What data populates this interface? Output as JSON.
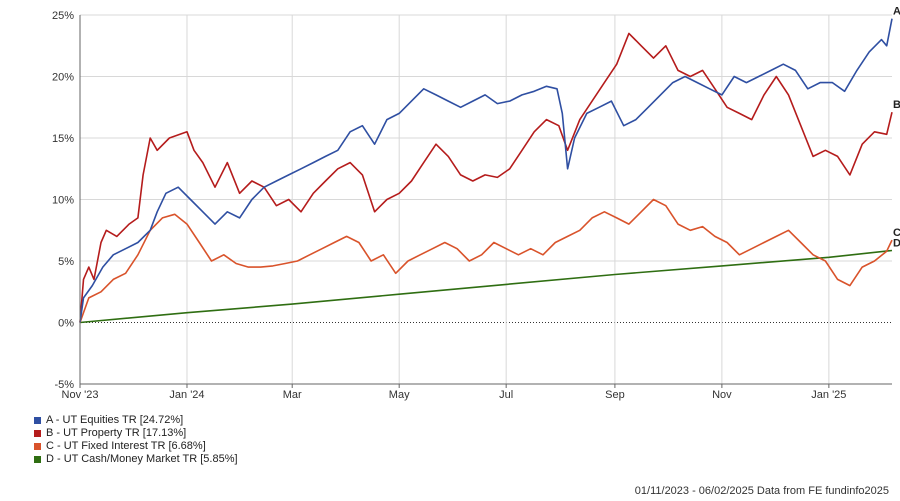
{
  "chart_data": {
    "type": "line",
    "title": "",
    "xlabel": "",
    "ylabel": "",
    "ylim": [
      -5,
      25
    ],
    "yticks": [
      -5,
      0,
      5,
      10,
      15,
      20,
      25
    ],
    "ytick_labels": [
      "-5%",
      "0%",
      "5%",
      "10%",
      "15%",
      "20%",
      "25%"
    ],
    "x_range": [
      "2023-11-01",
      "2025-02-06"
    ],
    "x_ticks": [
      {
        "date": "2023-11-01",
        "label": "Nov '23"
      },
      {
        "date": "2024-01-01",
        "label": "Jan '24"
      },
      {
        "date": "2024-03-01",
        "label": "Mar"
      },
      {
        "date": "2024-05-01",
        "label": "May"
      },
      {
        "date": "2024-07-01",
        "label": "Jul"
      },
      {
        "date": "2024-09-01",
        "label": "Sep"
      },
      {
        "date": "2024-11-01",
        "label": "Nov"
      },
      {
        "date": "2025-01-01",
        "label": "Jan '25"
      }
    ],
    "grid": true,
    "legend_position": "bottom-left",
    "series": [
      {
        "name": "A - UT Equities TR [24.72%]",
        "end_label": "A",
        "color": "#2f4fa2",
        "points": [
          [
            "2023-11-01",
            0.0
          ],
          [
            "2023-11-03",
            2.0
          ],
          [
            "2023-11-08",
            3.0
          ],
          [
            "2023-11-14",
            4.5
          ],
          [
            "2023-11-20",
            5.5
          ],
          [
            "2023-11-27",
            6.0
          ],
          [
            "2023-12-04",
            6.5
          ],
          [
            "2023-12-11",
            7.5
          ],
          [
            "2023-12-15",
            9.0
          ],
          [
            "2023-12-20",
            10.5
          ],
          [
            "2023-12-27",
            11.0
          ],
          [
            "2024-01-03",
            10.0
          ],
          [
            "2024-01-10",
            9.0
          ],
          [
            "2024-01-17",
            8.0
          ],
          [
            "2024-01-24",
            9.0
          ],
          [
            "2024-01-31",
            8.5
          ],
          [
            "2024-02-07",
            10.0
          ],
          [
            "2024-02-14",
            11.0
          ],
          [
            "2024-02-21",
            11.5
          ],
          [
            "2024-02-28",
            12.0
          ],
          [
            "2024-03-06",
            12.5
          ],
          [
            "2024-03-13",
            13.0
          ],
          [
            "2024-03-20",
            13.5
          ],
          [
            "2024-03-27",
            14.0
          ],
          [
            "2024-04-03",
            15.5
          ],
          [
            "2024-04-10",
            16.0
          ],
          [
            "2024-04-17",
            14.5
          ],
          [
            "2024-04-24",
            16.5
          ],
          [
            "2024-05-01",
            17.0
          ],
          [
            "2024-05-08",
            18.0
          ],
          [
            "2024-05-15",
            19.0
          ],
          [
            "2024-05-22",
            18.5
          ],
          [
            "2024-05-29",
            18.0
          ],
          [
            "2024-06-05",
            17.5
          ],
          [
            "2024-06-12",
            18.0
          ],
          [
            "2024-06-19",
            18.5
          ],
          [
            "2024-06-26",
            17.8
          ],
          [
            "2024-07-03",
            18.0
          ],
          [
            "2024-07-10",
            18.5
          ],
          [
            "2024-07-17",
            18.8
          ],
          [
            "2024-07-24",
            19.2
          ],
          [
            "2024-07-30",
            19.0
          ],
          [
            "2024-08-02",
            17.0
          ],
          [
            "2024-08-05",
            12.5
          ],
          [
            "2024-08-09",
            15.0
          ],
          [
            "2024-08-16",
            17.0
          ],
          [
            "2024-08-23",
            17.5
          ],
          [
            "2024-08-30",
            18.0
          ],
          [
            "2024-09-06",
            16.0
          ],
          [
            "2024-09-13",
            16.5
          ],
          [
            "2024-09-20",
            17.5
          ],
          [
            "2024-09-27",
            18.5
          ],
          [
            "2024-10-04",
            19.5
          ],
          [
            "2024-10-11",
            20.0
          ],
          [
            "2024-10-18",
            19.5
          ],
          [
            "2024-10-25",
            19.0
          ],
          [
            "2024-11-01",
            18.5
          ],
          [
            "2024-11-08",
            20.0
          ],
          [
            "2024-11-15",
            19.5
          ],
          [
            "2024-11-22",
            20.0
          ],
          [
            "2024-11-29",
            20.5
          ],
          [
            "2024-12-06",
            21.0
          ],
          [
            "2024-12-13",
            20.5
          ],
          [
            "2024-12-20",
            19.0
          ],
          [
            "2024-12-27",
            19.5
          ],
          [
            "2025-01-03",
            19.5
          ],
          [
            "2025-01-10",
            18.8
          ],
          [
            "2025-01-17",
            20.5
          ],
          [
            "2025-01-24",
            22.0
          ],
          [
            "2025-01-31",
            23.0
          ],
          [
            "2025-02-03",
            22.5
          ],
          [
            "2025-02-06",
            24.7
          ]
        ]
      },
      {
        "name": "B - UT Property TR [17.13%]",
        "end_label": "B",
        "color": "#b51c1c",
        "points": [
          [
            "2023-11-01",
            0.0
          ],
          [
            "2023-11-03",
            3.5
          ],
          [
            "2023-11-06",
            4.5
          ],
          [
            "2023-11-09",
            3.5
          ],
          [
            "2023-11-13",
            6.5
          ],
          [
            "2023-11-16",
            7.5
          ],
          [
            "2023-11-22",
            7.0
          ],
          [
            "2023-11-29",
            8.0
          ],
          [
            "2023-12-04",
            8.5
          ],
          [
            "2023-12-07",
            12.0
          ],
          [
            "2023-12-11",
            15.0
          ],
          [
            "2023-12-15",
            14.0
          ],
          [
            "2023-12-22",
            15.0
          ],
          [
            "2024-01-01",
            15.5
          ],
          [
            "2024-01-05",
            14.0
          ],
          [
            "2024-01-10",
            13.0
          ],
          [
            "2024-01-17",
            11.0
          ],
          [
            "2024-01-24",
            13.0
          ],
          [
            "2024-01-31",
            10.5
          ],
          [
            "2024-02-07",
            11.5
          ],
          [
            "2024-02-14",
            11.0
          ],
          [
            "2024-02-21",
            9.5
          ],
          [
            "2024-02-28",
            10.0
          ],
          [
            "2024-03-06",
            9.0
          ],
          [
            "2024-03-13",
            10.5
          ],
          [
            "2024-03-20",
            11.5
          ],
          [
            "2024-03-27",
            12.5
          ],
          [
            "2024-04-03",
            13.0
          ],
          [
            "2024-04-10",
            12.0
          ],
          [
            "2024-04-17",
            9.0
          ],
          [
            "2024-04-24",
            10.0
          ],
          [
            "2024-05-01",
            10.5
          ],
          [
            "2024-05-08",
            11.5
          ],
          [
            "2024-05-15",
            13.0
          ],
          [
            "2024-05-22",
            14.5
          ],
          [
            "2024-05-29",
            13.5
          ],
          [
            "2024-06-05",
            12.0
          ],
          [
            "2024-06-12",
            11.5
          ],
          [
            "2024-06-19",
            12.0
          ],
          [
            "2024-06-26",
            11.8
          ],
          [
            "2024-07-03",
            12.5
          ],
          [
            "2024-07-10",
            14.0
          ],
          [
            "2024-07-17",
            15.5
          ],
          [
            "2024-07-24",
            16.5
          ],
          [
            "2024-07-31",
            16.0
          ],
          [
            "2024-08-05",
            14.0
          ],
          [
            "2024-08-12",
            16.5
          ],
          [
            "2024-08-19",
            18.0
          ],
          [
            "2024-08-26",
            19.5
          ],
          [
            "2024-09-02",
            21.0
          ],
          [
            "2024-09-09",
            23.5
          ],
          [
            "2024-09-16",
            22.5
          ],
          [
            "2024-09-23",
            21.5
          ],
          [
            "2024-09-30",
            22.5
          ],
          [
            "2024-10-07",
            20.5
          ],
          [
            "2024-10-14",
            20.0
          ],
          [
            "2024-10-21",
            20.5
          ],
          [
            "2024-10-28",
            19.0
          ],
          [
            "2024-11-04",
            17.5
          ],
          [
            "2024-11-11",
            17.0
          ],
          [
            "2024-11-18",
            16.5
          ],
          [
            "2024-11-25",
            18.5
          ],
          [
            "2024-12-02",
            20.0
          ],
          [
            "2024-12-09",
            18.5
          ],
          [
            "2024-12-16",
            16.0
          ],
          [
            "2024-12-23",
            13.5
          ],
          [
            "2024-12-30",
            14.0
          ],
          [
            "2025-01-06",
            13.5
          ],
          [
            "2025-01-13",
            12.0
          ],
          [
            "2025-01-20",
            14.5
          ],
          [
            "2025-01-27",
            15.5
          ],
          [
            "2025-02-03",
            15.3
          ],
          [
            "2025-02-06",
            17.1
          ]
        ]
      },
      {
        "name": "C - UT Fixed Interest TR [6.68%]",
        "end_label": "C",
        "color": "#d9532b",
        "points": [
          [
            "2023-11-01",
            0.0
          ],
          [
            "2023-11-06",
            2.0
          ],
          [
            "2023-11-13",
            2.5
          ],
          [
            "2023-11-20",
            3.5
          ],
          [
            "2023-11-27",
            4.0
          ],
          [
            "2023-12-04",
            5.5
          ],
          [
            "2023-12-11",
            7.5
          ],
          [
            "2023-12-18",
            8.5
          ],
          [
            "2023-12-25",
            8.8
          ],
          [
            "2024-01-01",
            8.0
          ],
          [
            "2024-01-08",
            6.5
          ],
          [
            "2024-01-15",
            5.0
          ],
          [
            "2024-01-22",
            5.5
          ],
          [
            "2024-01-29",
            4.8
          ],
          [
            "2024-02-05",
            4.5
          ],
          [
            "2024-02-12",
            4.5
          ],
          [
            "2024-02-19",
            4.6
          ],
          [
            "2024-02-26",
            4.8
          ],
          [
            "2024-03-04",
            5.0
          ],
          [
            "2024-03-11",
            5.5
          ],
          [
            "2024-03-18",
            6.0
          ],
          [
            "2024-03-25",
            6.5
          ],
          [
            "2024-04-01",
            7.0
          ],
          [
            "2024-04-08",
            6.5
          ],
          [
            "2024-04-15",
            5.0
          ],
          [
            "2024-04-22",
            5.5
          ],
          [
            "2024-04-29",
            4.0
          ],
          [
            "2024-05-06",
            5.0
          ],
          [
            "2024-05-13",
            5.5
          ],
          [
            "2024-05-20",
            6.0
          ],
          [
            "2024-05-27",
            6.5
          ],
          [
            "2024-06-03",
            6.0
          ],
          [
            "2024-06-10",
            5.0
          ],
          [
            "2024-06-17",
            5.5
          ],
          [
            "2024-06-24",
            6.5
          ],
          [
            "2024-07-01",
            6.0
          ],
          [
            "2024-07-08",
            5.5
          ],
          [
            "2024-07-15",
            6.0
          ],
          [
            "2024-07-22",
            5.5
          ],
          [
            "2024-07-29",
            6.5
          ],
          [
            "2024-08-05",
            7.0
          ],
          [
            "2024-08-12",
            7.5
          ],
          [
            "2024-08-19",
            8.5
          ],
          [
            "2024-08-26",
            9.0
          ],
          [
            "2024-09-02",
            8.5
          ],
          [
            "2024-09-09",
            8.0
          ],
          [
            "2024-09-16",
            9.0
          ],
          [
            "2024-09-23",
            10.0
          ],
          [
            "2024-09-30",
            9.5
          ],
          [
            "2024-10-07",
            8.0
          ],
          [
            "2024-10-14",
            7.5
          ],
          [
            "2024-10-21",
            7.8
          ],
          [
            "2024-10-28",
            7.0
          ],
          [
            "2024-11-04",
            6.5
          ],
          [
            "2024-11-11",
            5.5
          ],
          [
            "2024-11-18",
            6.0
          ],
          [
            "2024-11-25",
            6.5
          ],
          [
            "2024-12-02",
            7.0
          ],
          [
            "2024-12-09",
            7.5
          ],
          [
            "2024-12-16",
            6.5
          ],
          [
            "2024-12-23",
            5.5
          ],
          [
            "2024-12-30",
            5.0
          ],
          [
            "2025-01-06",
            3.5
          ],
          [
            "2025-01-13",
            3.0
          ],
          [
            "2025-01-20",
            4.5
          ],
          [
            "2025-01-27",
            5.0
          ],
          [
            "2025-02-03",
            5.8
          ],
          [
            "2025-02-06",
            6.7
          ]
        ]
      },
      {
        "name": "D - UT Cash/Money Market TR [5.85%]",
        "end_label": "D",
        "color": "#2f6e12",
        "points": [
          [
            "2023-11-01",
            0.0
          ],
          [
            "2024-01-01",
            0.8
          ],
          [
            "2024-03-01",
            1.5
          ],
          [
            "2024-05-01",
            2.3
          ],
          [
            "2024-07-01",
            3.1
          ],
          [
            "2024-09-01",
            3.9
          ],
          [
            "2024-11-01",
            4.6
          ],
          [
            "2025-01-01",
            5.3
          ],
          [
            "2025-02-06",
            5.85
          ]
        ]
      }
    ]
  },
  "footer": "01/11/2023 - 06/02/2025 Data from FE fundinfo2025"
}
